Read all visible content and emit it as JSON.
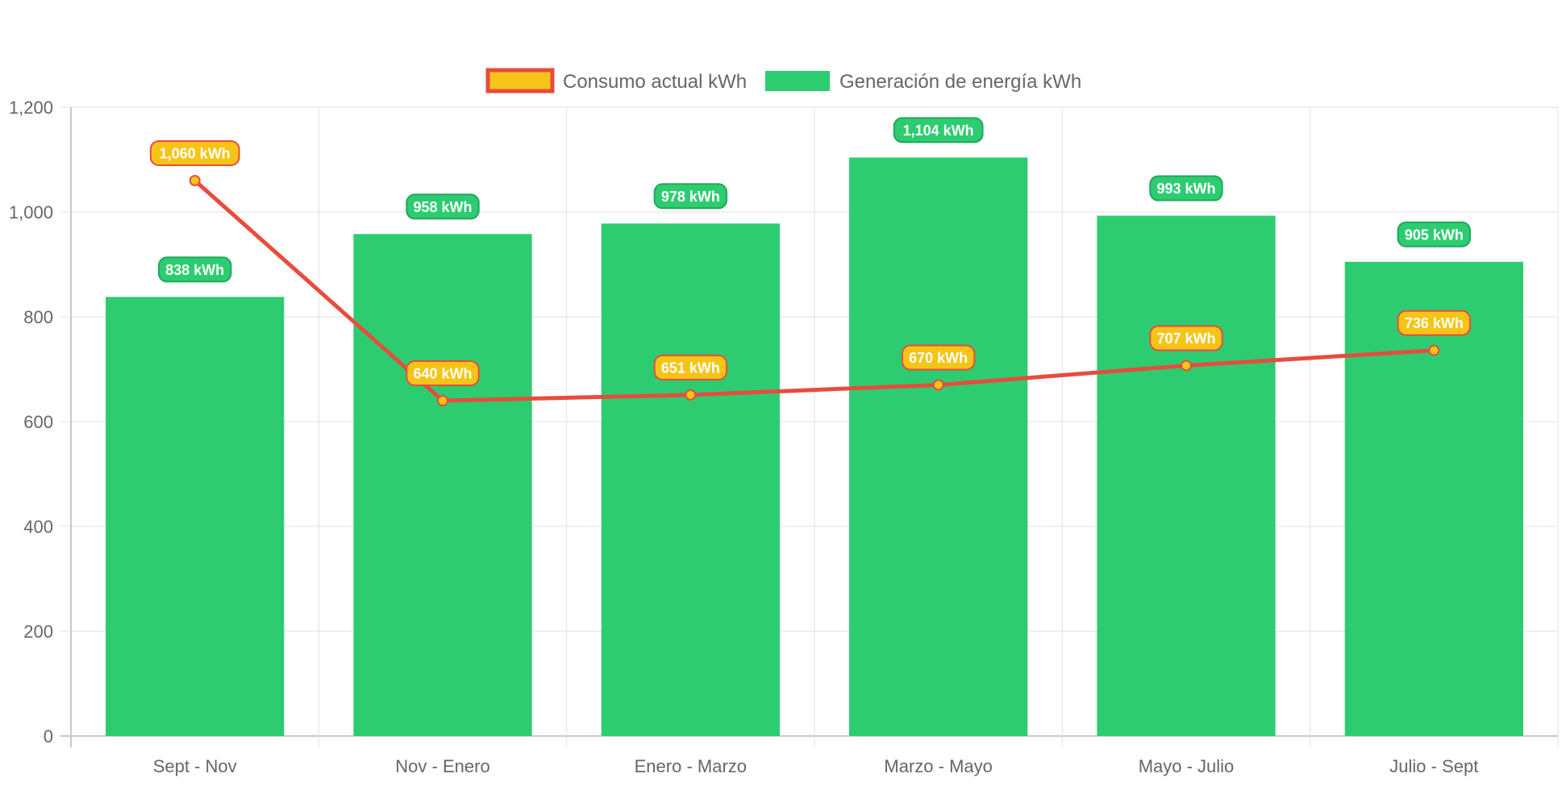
{
  "chart_data": {
    "type": "bar",
    "categories": [
      "Sept - Nov",
      "Nov - Enero",
      "Enero - Marzo",
      "Marzo - Mayo",
      "Mayo - Julio",
      "Julio - Sept"
    ],
    "ylim": [
      0,
      1200
    ],
    "y_ticks": [
      "0",
      "200",
      "400",
      "600",
      "800",
      "1,000",
      "1,200"
    ],
    "y_tick_values": [
      0,
      200,
      400,
      600,
      800,
      1000,
      1200
    ],
    "grid": true,
    "legend_position": "top",
    "series": [
      {
        "name": "Consumo actual kWh",
        "type": "line",
        "values": [
          1060,
          640,
          651,
          670,
          707,
          736
        ],
        "labels": [
          "1,060 kWh",
          "640 kWh",
          "651 kWh",
          "670 kWh",
          "707 kWh",
          "736 kWh"
        ],
        "line_color": "#e74c3c",
        "fill_color": "#f6c417"
      },
      {
        "name": "Generación de energía kWh",
        "type": "bar",
        "values": [
          838,
          958,
          978,
          1104,
          993,
          905
        ],
        "labels": [
          "838 kWh",
          "958 kWh",
          "978 kWh",
          "1,104 kWh",
          "993 kWh",
          "905 kWh"
        ],
        "fill_color": "#2ecc71",
        "border_color": "#1fa85a"
      }
    ]
  }
}
